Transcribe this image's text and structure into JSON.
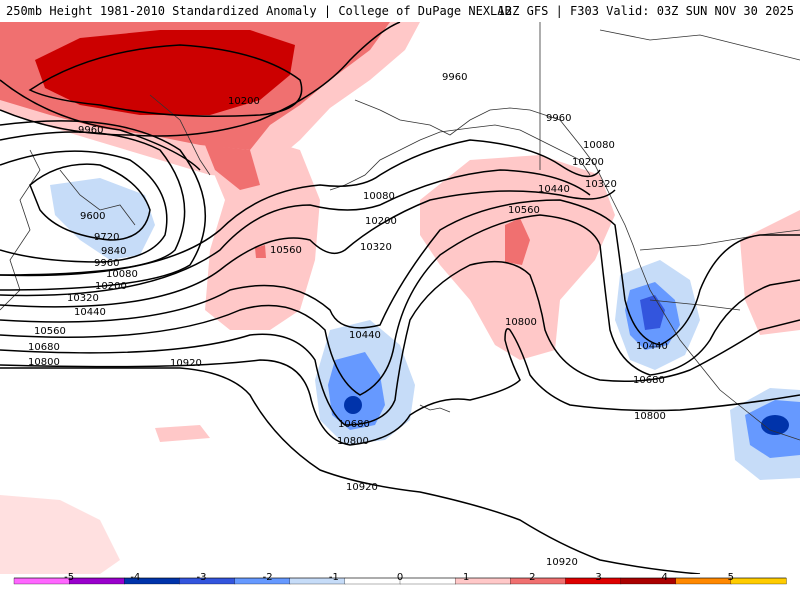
{
  "header": {
    "left_title": "250mb Height 1981-2010 Standardized Anomaly | College of DuPage NEXLAB",
    "right_title": "12Z GFS | F303 Valid: 03Z SUN NOV 30 2025"
  },
  "contour_labels": [
    {
      "text": "9960"
    },
    {
      "text": "10200"
    },
    {
      "text": "9960"
    },
    {
      "text": "9960"
    },
    {
      "text": "10080"
    },
    {
      "text": "10200"
    },
    {
      "text": "10320"
    },
    {
      "text": "9600"
    },
    {
      "text": "9720"
    },
    {
      "text": "9840"
    },
    {
      "text": "9960"
    },
    {
      "text": "10080"
    },
    {
      "text": "10200"
    },
    {
      "text": "10320"
    },
    {
      "text": "10440"
    },
    {
      "text": "10560"
    },
    {
      "text": "10680"
    },
    {
      "text": "10800"
    },
    {
      "text": "10920"
    },
    {
      "text": "10080"
    },
    {
      "text": "10200"
    },
    {
      "text": "10320"
    },
    {
      "text": "10560"
    },
    {
      "text": "10440"
    },
    {
      "text": "10560"
    },
    {
      "text": "10800"
    },
    {
      "text": "10440"
    },
    {
      "text": "10680"
    },
    {
      "text": "10800"
    },
    {
      "text": "10680"
    },
    {
      "text": "10800"
    },
    {
      "text": "10920"
    },
    {
      "text": "10920"
    }
  ],
  "colorbar": {
    "ticks": [
      "-5",
      "-4",
      "-3",
      "-2",
      "-1",
      "0",
      "1",
      "2",
      "3",
      "4",
      "5"
    ],
    "colors": [
      "#ff66ff",
      "#9900cc",
      "#0033aa",
      "#3355dd",
      "#6699ff",
      "#c6dcf8",
      "#ffffff",
      "#ffffff",
      "#ffc8c8",
      "#f07070",
      "#dd0000",
      "#aa0000",
      "#ff8800",
      "#ffcc00"
    ]
  }
}
